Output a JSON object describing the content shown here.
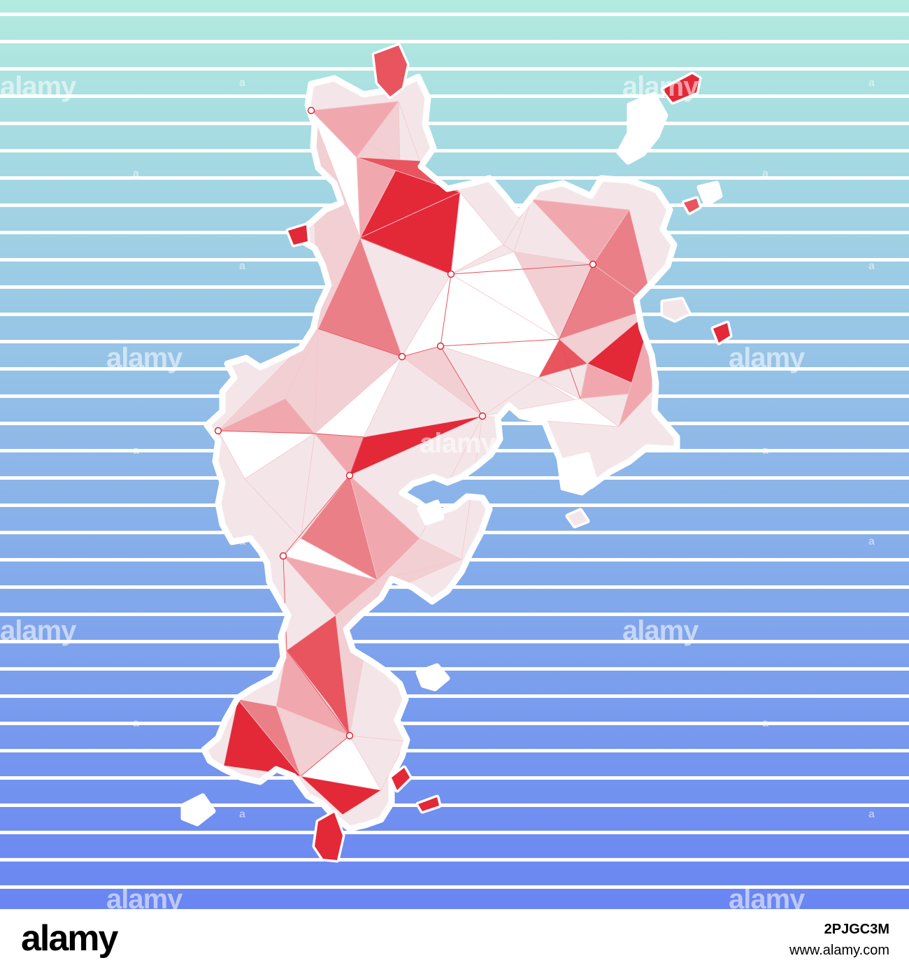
{
  "map": {
    "background_gradient": [
      "#b2ebdf",
      "#6985f2"
    ],
    "stripe_color": "#ffffff",
    "island_outline_color": "#ffffff",
    "palette": [
      "#ffffff",
      "#f4e6e8",
      "#f2cfd3",
      "#f0a8ae",
      "#ea7f87",
      "#e8555f",
      "#e32838"
    ]
  },
  "watermark": {
    "text": "alamy",
    "mark": "a"
  },
  "footer": {
    "logo_text": "alamy",
    "image_id": "2PJGC3M",
    "site": "www.alamy.com"
  }
}
